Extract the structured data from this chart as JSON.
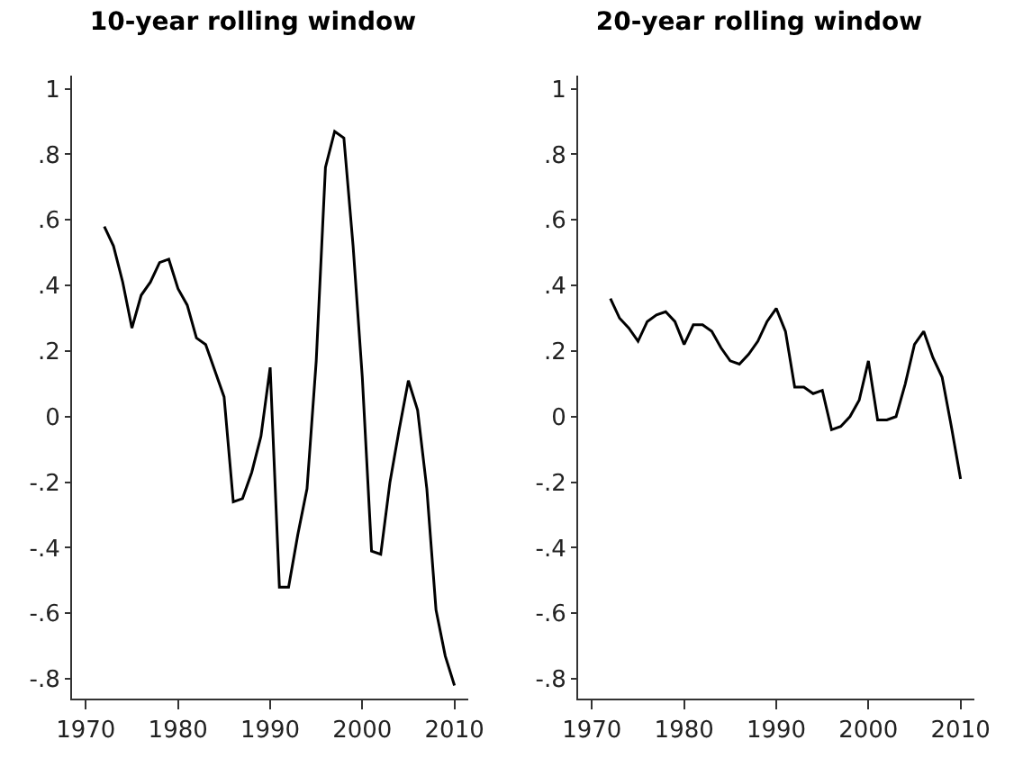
{
  "chart_data": [
    {
      "type": "line",
      "title": "10-year rolling window",
      "x": [
        1972,
        1973,
        1974,
        1975,
        1976,
        1977,
        1978,
        1979,
        1980,
        1981,
        1982,
        1983,
        1984,
        1985,
        1986,
        1987,
        1988,
        1989,
        1990,
        1991,
        1992,
        1993,
        1994,
        1995,
        1996,
        1997,
        1998,
        1999,
        2000,
        2001,
        2002,
        2003,
        2004,
        2005,
        2006,
        2007,
        2008,
        2009,
        2010
      ],
      "series": [
        {
          "color": "#000000",
          "values": [
            0.58,
            0.52,
            0.41,
            0.27,
            0.37,
            0.41,
            0.47,
            0.48,
            0.39,
            0.34,
            0.24,
            0.22,
            0.14,
            0.06,
            -0.26,
            -0.25,
            -0.17,
            -0.06,
            0.15,
            -0.52,
            -0.52,
            -0.36,
            -0.22,
            0.17,
            0.76,
            0.87,
            0.85,
            0.52,
            0.12,
            -0.41,
            -0.42,
            -0.2,
            -0.04,
            0.11,
            0.02,
            -0.22,
            -0.59,
            -0.73,
            -0.82
          ]
        }
      ],
      "xlim": [
        1968.5,
        2011.5
      ],
      "xticks": [
        1970,
        1980,
        1990,
        2000,
        2010
      ],
      "ylim": [
        -0.86,
        1.04
      ],
      "yticks": [
        {
          "value": -0.8,
          "label": "-.8"
        },
        {
          "value": -0.6,
          "label": "-.6"
        },
        {
          "value": -0.4,
          "label": "-.4"
        },
        {
          "value": -0.2,
          "label": "-.2"
        },
        {
          "value": 0,
          "label": "0"
        },
        {
          "value": 0.2,
          "label": ".2"
        },
        {
          "value": 0.4,
          "label": ".4"
        },
        {
          "value": 0.6,
          "label": ".6"
        },
        {
          "value": 0.8,
          "label": ".8"
        },
        {
          "value": 1,
          "label": "1"
        }
      ]
    },
    {
      "type": "line",
      "title": "20-year rolling window",
      "x": [
        1972,
        1973,
        1974,
        1975,
        1976,
        1977,
        1978,
        1979,
        1980,
        1981,
        1982,
        1983,
        1984,
        1985,
        1986,
        1987,
        1988,
        1989,
        1990,
        1991,
        1992,
        1993,
        1994,
        1995,
        1996,
        1997,
        1998,
        1999,
        2000,
        2001,
        2002,
        2003,
        2004,
        2005,
        2006,
        2007,
        2008,
        2009,
        2010
      ],
      "series": [
        {
          "color": "#000000",
          "values": [
            0.36,
            0.3,
            0.27,
            0.23,
            0.29,
            0.31,
            0.32,
            0.29,
            0.22,
            0.28,
            0.28,
            0.26,
            0.21,
            0.17,
            0.16,
            0.19,
            0.23,
            0.29,
            0.33,
            0.26,
            0.09,
            0.09,
            0.07,
            0.08,
            -0.04,
            -0.03,
            0.0,
            0.05,
            0.17,
            -0.01,
            -0.01,
            0.0,
            0.1,
            0.22,
            0.26,
            0.18,
            0.12,
            -0.03,
            -0.19
          ]
        }
      ],
      "xlim": [
        1968.5,
        2011.5
      ],
      "xticks": [
        1970,
        1980,
        1990,
        2000,
        2010
      ],
      "ylim": [
        -0.86,
        1.04
      ],
      "yticks": [
        {
          "value": -0.8,
          "label": "-.8"
        },
        {
          "value": -0.6,
          "label": "-.6"
        },
        {
          "value": -0.4,
          "label": "-.4"
        },
        {
          "value": -0.2,
          "label": "-.2"
        },
        {
          "value": 0,
          "label": "0"
        },
        {
          "value": 0.2,
          "label": ".2"
        },
        {
          "value": 0.4,
          "label": ".4"
        },
        {
          "value": 0.6,
          "label": ".6"
        },
        {
          "value": 0.8,
          "label": ".8"
        },
        {
          "value": 1,
          "label": "1"
        }
      ]
    }
  ]
}
